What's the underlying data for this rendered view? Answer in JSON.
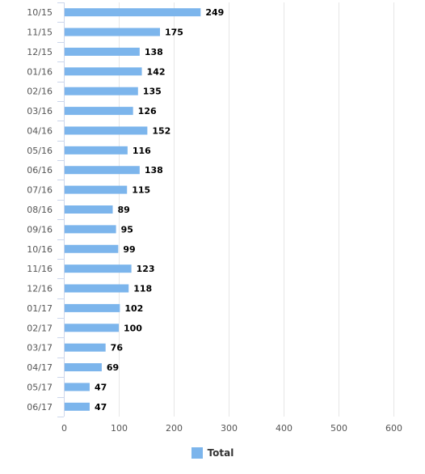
{
  "chart_data": {
    "type": "bar",
    "orientation": "horizontal",
    "categories": [
      "10/15",
      "11/15",
      "12/15",
      "01/16",
      "02/16",
      "03/16",
      "04/16",
      "05/16",
      "06/16",
      "07/16",
      "08/16",
      "09/16",
      "10/16",
      "11/16",
      "12/16",
      "01/17",
      "02/17",
      "03/17",
      "04/17",
      "05/17",
      "06/17"
    ],
    "series": [
      {
        "name": "Total",
        "values": [
          249,
          175,
          138,
          142,
          135,
          126,
          152,
          116,
          138,
          115,
          89,
          95,
          99,
          123,
          118,
          102,
          100,
          76,
          69,
          47,
          47
        ]
      }
    ],
    "xlim": [
      0,
      600
    ],
    "xticks": [
      "0",
      "100",
      "200",
      "300",
      "400",
      "500",
      "600"
    ],
    "grid": true,
    "legend_position": "bottom",
    "bar_color": "#7cb5ec"
  }
}
